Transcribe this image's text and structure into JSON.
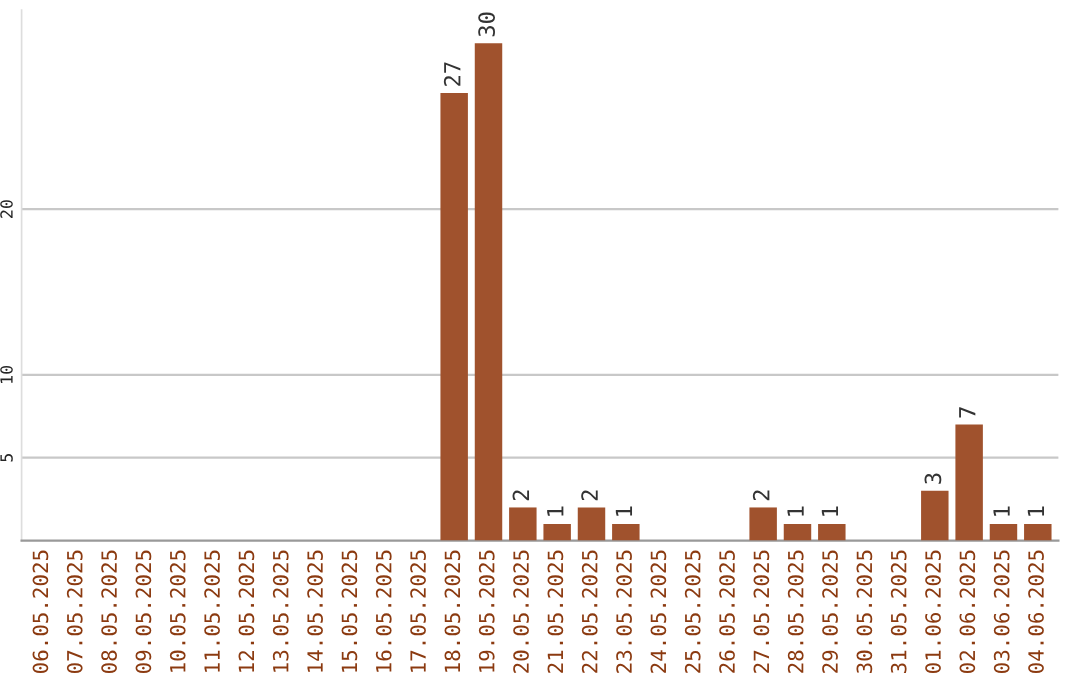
{
  "chart_data": {
    "type": "bar",
    "categories": [
      "06.05.2025",
      "07.05.2025",
      "08.05.2025",
      "09.05.2025",
      "10.05.2025",
      "11.05.2025",
      "12.05.2025",
      "13.05.2025",
      "14.05.2025",
      "15.05.2025",
      "16.05.2025",
      "17.05.2025",
      "18.05.2025",
      "19.05.2025",
      "20.05.2025",
      "21.05.2025",
      "22.05.2025",
      "23.05.2025",
      "24.05.2025",
      "25.05.2025",
      "26.05.2025",
      "27.05.2025",
      "28.05.2025",
      "29.05.2025",
      "30.05.2025",
      "31.05.2025",
      "01.06.2025",
      "02.06.2025",
      "03.06.2025",
      "04.06.2025"
    ],
    "values": [
      0,
      0,
      0,
      0,
      0,
      0,
      0,
      0,
      0,
      0,
      0,
      0,
      27,
      30,
      2,
      1,
      2,
      1,
      0,
      0,
      0,
      2,
      1,
      1,
      0,
      0,
      3,
      7,
      1,
      1
    ],
    "value_labels": [
      null,
      null,
      null,
      null,
      null,
      null,
      null,
      null,
      null,
      null,
      null,
      null,
      "27",
      "30",
      "2",
      "1",
      "2",
      "1",
      null,
      null,
      null,
      "2",
      "1",
      "1",
      null,
      null,
      "3",
      "7",
      "1",
      "1"
    ],
    "color": "#a0522d",
    "ylim": [
      0,
      32
    ],
    "yticks": [
      5,
      10,
      20
    ],
    "grid": "y"
  }
}
